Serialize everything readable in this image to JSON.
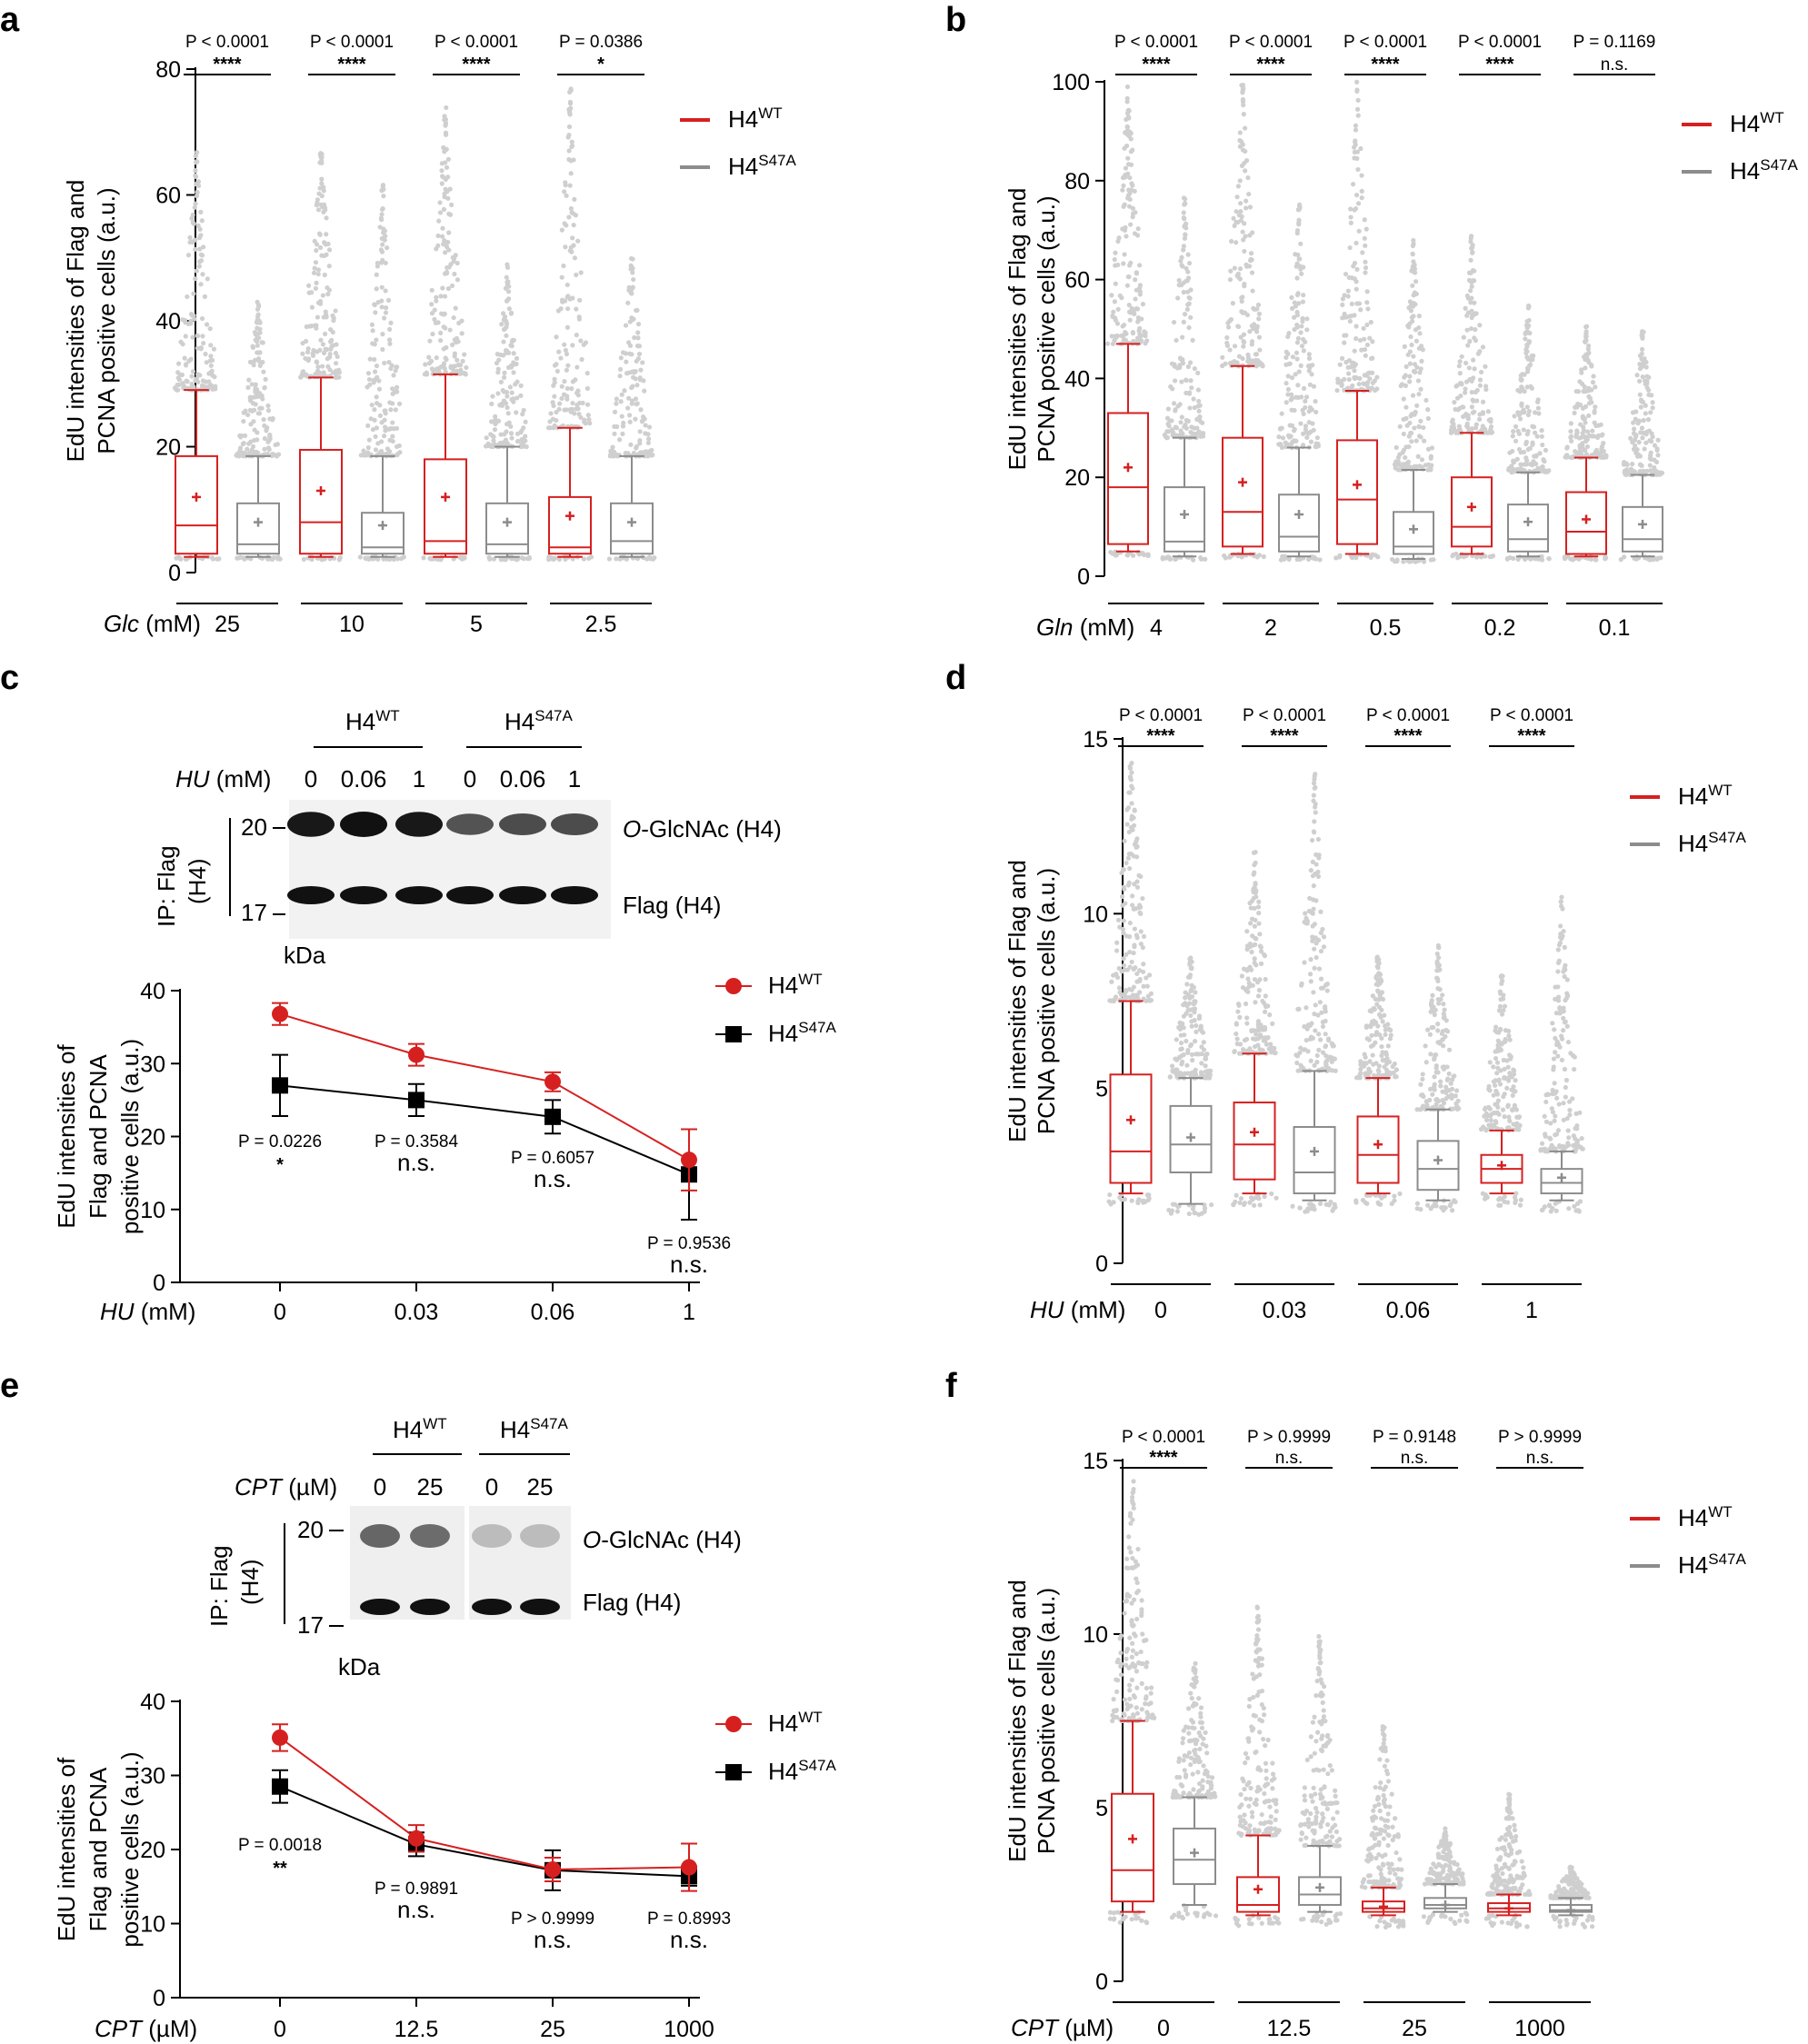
{
  "colors": {
    "wt": "#d62020",
    "mut": "#8c8c8c",
    "dot": "#cfcfcf",
    "black": "#000000"
  },
  "legend": {
    "wt": "H4",
    "wt_sup": "WT",
    "mut": "H4",
    "mut_sup": "S47A"
  },
  "chart_data": [
    {
      "panel": "a",
      "type": "box",
      "ylabel_line1": "EdU intensities of Flag and",
      "ylabel_line2": "PCNA positive cells (a.u.)",
      "xlabel_italic": "Glc",
      "xlabel_unit": "(mM)",
      "ylim": [
        0,
        80
      ],
      "yticks": [
        "0",
        "20",
        "40",
        "60",
        "80"
      ],
      "groups": [
        {
          "label": "25",
          "p": "P < 0.0001",
          "sig": "****",
          "wt": {
            "min": 2.5,
            "q1": 3,
            "median": 7.5,
            "q3": 18.5,
            "max": 29,
            "mean": 12,
            "outmax": 68
          },
          "mut": {
            "min": 2.5,
            "q1": 3,
            "median": 4.5,
            "q3": 11,
            "max": 18.5,
            "mean": 8,
            "outmax": 43
          }
        },
        {
          "label": "10",
          "p": "P < 0.0001",
          "sig": "****",
          "wt": {
            "min": 2.5,
            "q1": 3,
            "median": 8,
            "q3": 19.5,
            "max": 31,
            "mean": 13,
            "outmax": 67
          },
          "mut": {
            "min": 2.5,
            "q1": 3,
            "median": 4,
            "q3": 9.5,
            "max": 18.5,
            "mean": 7.5,
            "outmax": 62
          }
        },
        {
          "label": "5",
          "p": "P < 0.0001",
          "sig": "****",
          "wt": {
            "min": 2.5,
            "q1": 3,
            "median": 5,
            "q3": 18,
            "max": 31.5,
            "mean": 12,
            "outmax": 74
          },
          "mut": {
            "min": 2.5,
            "q1": 3,
            "median": 4.5,
            "q3": 11,
            "max": 20,
            "mean": 8,
            "outmax": 49
          }
        },
        {
          "label": "2.5",
          "p": "P = 0.0386",
          "sig": "*",
          "wt": {
            "min": 2.5,
            "q1": 3,
            "median": 4,
            "q3": 12,
            "max": 23,
            "mean": 9,
            "outmax": 77
          },
          "mut": {
            "min": 2.5,
            "q1": 3,
            "median": 5,
            "q3": 11,
            "max": 18.5,
            "mean": 8,
            "outmax": 51
          }
        }
      ]
    },
    {
      "panel": "b",
      "type": "box",
      "ylabel_line1": "EdU intensities of Flag and",
      "ylabel_line2": "PCNA positive cells (a.u.)",
      "xlabel_italic": "Gln",
      "xlabel_unit": "(mM)",
      "ylim": [
        0,
        100
      ],
      "yticks": [
        "0",
        "20",
        "40",
        "60",
        "80",
        "100"
      ],
      "groups": [
        {
          "label": "4",
          "p": "P < 0.0001",
          "sig": "****",
          "wt": {
            "min": 5,
            "q1": 6.5,
            "median": 18,
            "q3": 33,
            "max": 47,
            "mean": 22,
            "outmax": 100
          },
          "mut": {
            "min": 4,
            "q1": 5,
            "median": 7,
            "q3": 18,
            "max": 28,
            "mean": 12.5,
            "outmax": 77
          }
        },
        {
          "label": "2",
          "p": "P < 0.0001",
          "sig": "****",
          "wt": {
            "min": 4.5,
            "q1": 6,
            "median": 13,
            "q3": 28,
            "max": 42.5,
            "mean": 19,
            "outmax": 100
          },
          "mut": {
            "min": 4,
            "q1": 5,
            "median": 8,
            "q3": 16.5,
            "max": 26,
            "mean": 12.5,
            "outmax": 77
          }
        },
        {
          "label": "0.5",
          "p": "P < 0.0001",
          "sig": "****",
          "wt": {
            "min": 4.5,
            "q1": 6.5,
            "median": 15.5,
            "q3": 27.5,
            "max": 37.5,
            "mean": 18.5,
            "outmax": 100
          },
          "mut": {
            "min": 3.5,
            "q1": 4.5,
            "median": 6,
            "q3": 13,
            "max": 21.5,
            "mean": 9.5,
            "outmax": 68
          }
        },
        {
          "label": "0.2",
          "p": "P < 0.0001",
          "sig": "****",
          "wt": {
            "min": 4.5,
            "q1": 6,
            "median": 10,
            "q3": 20,
            "max": 29,
            "mean": 14,
            "outmax": 69
          },
          "mut": {
            "min": 4,
            "q1": 5,
            "median": 7.5,
            "q3": 14.5,
            "max": 21,
            "mean": 11,
            "outmax": 55
          }
        },
        {
          "label": "0.1",
          "p": "P = 0.1169",
          "sig": "n.s.",
          "wt": {
            "min": 4,
            "q1": 4.5,
            "median": 9,
            "q3": 17,
            "max": 24,
            "mean": 11.5,
            "outmax": 51
          },
          "mut": {
            "min": 4,
            "q1": 5,
            "median": 7.5,
            "q3": 14,
            "max": 20.5,
            "mean": 10.5,
            "outmax": 50
          }
        }
      ]
    },
    {
      "panel": "d",
      "type": "box",
      "ylabel_line1": "EdU intensities of Flag and",
      "ylabel_line2": "PCNA positive cells (a.u.)",
      "xlabel_italic": "HU",
      "xlabel_unit": "(mM)",
      "ylim": [
        0,
        15
      ],
      "yticks": [
        "0",
        "5",
        "10",
        "15"
      ],
      "groups": [
        {
          "label": "0",
          "p": "P < 0.0001",
          "sig": "****",
          "wt": {
            "min": 2,
            "q1": 2.3,
            "median": 3.2,
            "q3": 5.4,
            "max": 7.5,
            "mean": 4.1,
            "outmax": 14.5
          },
          "mut": {
            "min": 1.7,
            "q1": 2.6,
            "median": 3.4,
            "q3": 4.5,
            "max": 5.3,
            "mean": 3.6,
            "outmax": 8.8
          }
        },
        {
          "label": "0.03",
          "p": "P < 0.0001",
          "sig": "****",
          "wt": {
            "min": 2,
            "q1": 2.4,
            "median": 3.4,
            "q3": 4.6,
            "max": 6,
            "mean": 3.75,
            "outmax": 11.9
          },
          "mut": {
            "min": 1.8,
            "q1": 2,
            "median": 2.6,
            "q3": 3.9,
            "max": 5.5,
            "mean": 3.2,
            "outmax": 14.1
          }
        },
        {
          "label": "0.06",
          "p": "P < 0.0001",
          "sig": "****",
          "wt": {
            "min": 2,
            "q1": 2.3,
            "median": 3.1,
            "q3": 4.2,
            "max": 5.3,
            "mean": 3.4,
            "outmax": 8.8
          },
          "mut": {
            "min": 1.8,
            "q1": 2.1,
            "median": 2.7,
            "q3": 3.5,
            "max": 4.4,
            "mean": 2.95,
            "outmax": 9.1
          }
        },
        {
          "label": "1",
          "p": "P < 0.0001",
          "sig": "****",
          "wt": {
            "min": 2,
            "q1": 2.3,
            "median": 2.7,
            "q3": 3.1,
            "max": 3.8,
            "mean": 2.8,
            "outmax": 8.3
          },
          "mut": {
            "min": 1.8,
            "q1": 2,
            "median": 2.3,
            "q3": 2.7,
            "max": 3.2,
            "mean": 2.45,
            "outmax": 10.5
          }
        }
      ]
    },
    {
      "panel": "f",
      "type": "box",
      "ylabel_line1": "EdU intensities of Flag and",
      "ylabel_line2": "PCNA positive cells (a.u.)",
      "xlabel_italic": "CPT",
      "xlabel_unit": "(µM)",
      "ylim": [
        0,
        15
      ],
      "yticks": [
        "0",
        "5",
        "10",
        "15"
      ],
      "groups": [
        {
          "label": "0",
          "p": "P < 0.0001",
          "sig": "****",
          "wt": {
            "min": 2,
            "q1": 2.3,
            "median": 3.2,
            "q3": 5.4,
            "max": 7.5,
            "mean": 4.1,
            "outmax": 14.5
          },
          "mut": {
            "min": 2.2,
            "q1": 2.8,
            "median": 3.5,
            "q3": 4.4,
            "max": 5.3,
            "mean": 3.7,
            "outmax": 9.3
          }
        },
        {
          "label": "12.5",
          "p": "P > 0.9999",
          "sig": "n.s.",
          "wt": {
            "min": 1.9,
            "q1": 2,
            "median": 2.2,
            "q3": 3,
            "max": 4.2,
            "mean": 2.65,
            "outmax": 10.9
          },
          "mut": {
            "min": 2,
            "q1": 2.2,
            "median": 2.5,
            "q3": 3,
            "max": 3.9,
            "mean": 2.7,
            "outmax": 10
          }
        },
        {
          "label": "25",
          "p": "P = 0.9148",
          "sig": "n.s.",
          "wt": {
            "min": 1.9,
            "q1": 2,
            "median": 2.1,
            "q3": 2.3,
            "max": 2.7,
            "mean": 2.15,
            "outmax": 7.5
          },
          "mut": {
            "min": 2,
            "q1": 2.1,
            "median": 2.2,
            "q3": 2.4,
            "max": 2.8,
            "mean": 2.2,
            "outmax": 4.4
          }
        },
        {
          "label": "1000",
          "p": "P > 0.9999",
          "sig": "n.s.",
          "wt": {
            "min": 1.9,
            "q1": 2,
            "median": 2.1,
            "q3": 2.25,
            "max": 2.5,
            "mean": 2.1,
            "outmax": 5.4
          },
          "mut": {
            "min": 1.9,
            "q1": 2,
            "median": 2.05,
            "q3": 2.2,
            "max": 2.4,
            "mean": 2.05,
            "outmax": 3.3
          }
        }
      ]
    },
    {
      "panel": "c",
      "type": "line",
      "ylabel_line1": "EdU intensities of",
      "ylabel_line2": "Flag and PCNA",
      "ylabel_line3": "positive cells (a.u.)",
      "xlabel_italic": "HU",
      "xlabel_unit": "(mM)",
      "ylim": [
        0,
        40
      ],
      "yticks": [
        "0",
        "10",
        "20",
        "30",
        "40"
      ],
      "categories": [
        "0",
        "0.03",
        "0.06",
        "1"
      ],
      "series": [
        {
          "name": "WT",
          "values": [
            36.8,
            31.2,
            27.5,
            16.8
          ],
          "err": [
            1.5,
            1.5,
            1.3,
            4.2
          ]
        },
        {
          "name": "S47A",
          "values": [
            27,
            25,
            22.7,
            14.8
          ],
          "err": [
            4.2,
            2.2,
            2.3,
            6.2
          ]
        }
      ],
      "pvals": [
        {
          "p": "P = 0.0226",
          "sig": "*"
        },
        {
          "p": "P = 0.3584",
          "sig": "n.s."
        },
        {
          "p": "P = 0.6057",
          "sig": "n.s."
        },
        {
          "p": "P = 0.9536",
          "sig": "n.s."
        }
      ]
    },
    {
      "panel": "e",
      "type": "line",
      "ylabel_line1": "EdU intensities of",
      "ylabel_line2": "Flag and PCNA",
      "ylabel_line3": "positive cells (a.u.)",
      "xlabel_italic": "CPT",
      "xlabel_unit": "(µM)",
      "ylim": [
        0,
        40
      ],
      "yticks": [
        "0",
        "10",
        "20",
        "30",
        "40"
      ],
      "categories": [
        "0",
        "12.5",
        "25",
        "1000"
      ],
      "series": [
        {
          "name": "WT",
          "values": [
            35.1,
            21.5,
            17.3,
            17.6
          ],
          "err": [
            1.8,
            1.8,
            1.6,
            3.2
          ]
        },
        {
          "name": "S47A",
          "values": [
            28.5,
            20.7,
            17.2,
            16.4
          ],
          "err": [
            2.2,
            1.6,
            2.7,
            1.3
          ]
        }
      ],
      "pvals": [
        {
          "p": "P = 0.0018",
          "sig": "**"
        },
        {
          "p": "P = 0.9891",
          "sig": "n.s."
        },
        {
          "p": "P > 0.9999",
          "sig": "n.s."
        },
        {
          "p": "P = 0.8993",
          "sig": "n.s."
        }
      ]
    }
  ],
  "blot_c": {
    "treat_italic": "HU",
    "treat_unit": "(mM)",
    "lanes": [
      "0",
      "0.06",
      "1",
      "0",
      "0.06",
      "1"
    ],
    "band1_label_italic": "O",
    "band1_label_rest": "-GlcNAc (H4)",
    "band2_label": "Flag (H4)",
    "ip_label": "IP: Flag",
    "ip_label2": "(H4)",
    "mw_top": "20",
    "mw_bottom": "17",
    "kda": "kDa"
  },
  "blot_e": {
    "treat_italic": "CPT",
    "treat_unit": "(µM)",
    "lanes": [
      "0",
      "25",
      "0",
      "25"
    ],
    "band1_label_italic": "O",
    "band1_label_rest": "-GlcNAc (H4)",
    "band2_label": "Flag (H4)",
    "ip_label": "IP: Flag",
    "ip_label2": "(H4)",
    "mw_top": "20",
    "mw_bottom": "17",
    "kda": "kDa"
  },
  "panel_labels": [
    "a",
    "b",
    "c",
    "d",
    "e",
    "f"
  ]
}
